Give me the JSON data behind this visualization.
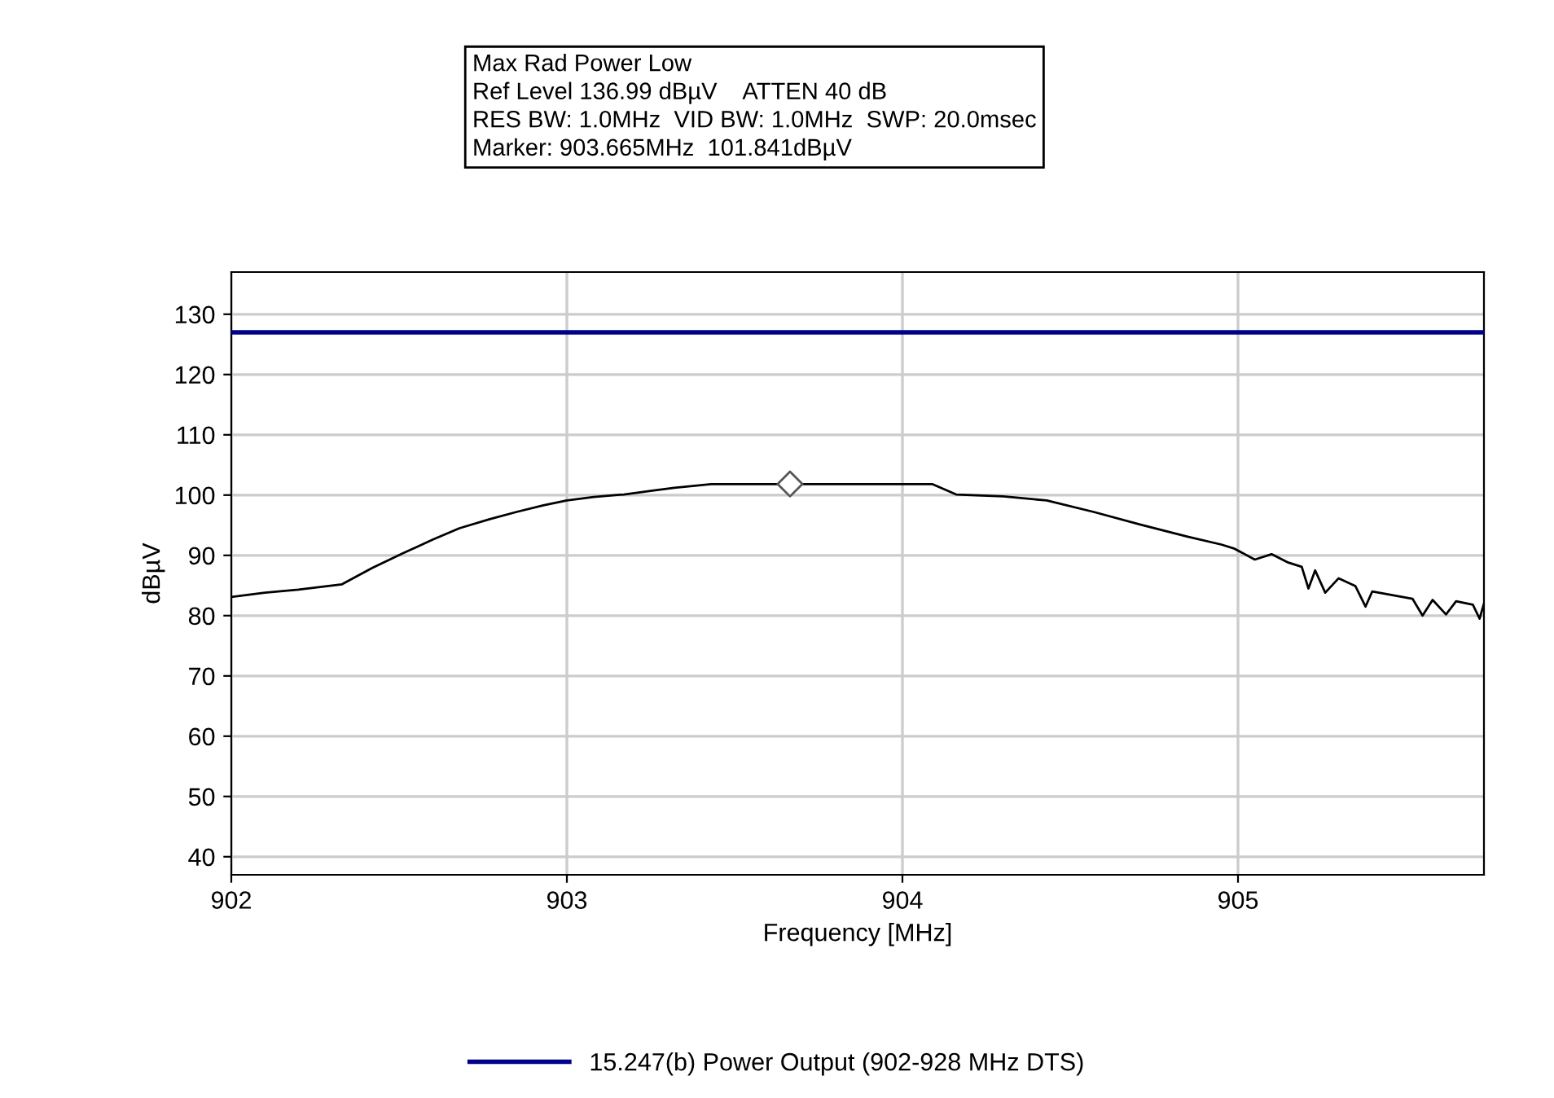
{
  "chart_data": {
    "type": "line",
    "xlabel": "Frequency [MHz]",
    "ylabel": "dBµV",
    "annotations": [
      "Max Rad Power Low",
      "Ref Level 136.99 dBµV    ATTEN 40 dB",
      "RES BW: 1.0MHz  VID BW: 1.0MHz  SWP: 20.0msec",
      "Marker: 903.665MHz  101.841dBµV"
    ],
    "xlim": [
      902,
      905.733
    ],
    "xticks": [
      902,
      903,
      904,
      905
    ],
    "ylim": [
      37,
      137
    ],
    "yticks": [
      40,
      50,
      60,
      70,
      80,
      90,
      100,
      110,
      120,
      130
    ],
    "grid": true,
    "legend": "bottom",
    "series": [
      {
        "name": "15.247(b) Power Output (902-928 MHz DTS)",
        "color": "#00008b",
        "x": [
          902,
          905.733
        ],
        "values": [
          127,
          127
        ]
      },
      {
        "color": "#000000",
        "x": [
          902.0,
          902.1,
          902.2,
          902.33,
          902.42,
          902.51,
          902.6,
          902.68,
          902.77,
          902.85,
          902.93,
          903.0,
          903.08,
          903.17,
          903.25,
          903.32,
          903.43,
          903.6,
          903.8,
          904.0,
          904.09,
          904.16,
          904.3,
          904.43,
          904.57,
          904.71,
          904.85,
          904.95,
          904.99,
          905.05,
          905.1,
          905.15,
          905.19,
          905.21,
          905.23,
          905.26,
          905.3,
          905.35,
          905.38,
          905.4,
          905.45,
          905.52,
          905.55,
          905.58,
          905.62,
          905.65,
          905.7,
          905.72,
          905.733
        ],
        "values": [
          83.1,
          83.8,
          84.3,
          85.2,
          87.9,
          90.3,
          92.6,
          94.5,
          96.0,
          97.2,
          98.3,
          99.1,
          99.7,
          100.1,
          100.7,
          101.2,
          101.8,
          101.8,
          101.8,
          101.8,
          101.8,
          100.1,
          99.8,
          99.1,
          97.2,
          95.1,
          93.1,
          91.8,
          91.1,
          89.3,
          90.2,
          88.8,
          88.1,
          84.5,
          87.5,
          83.8,
          86.2,
          84.9,
          81.5,
          84.0,
          83.5,
          82.8,
          80.0,
          82.6,
          80.2,
          82.4,
          81.8,
          79.5,
          82.0
        ]
      },
      {
        "color": "#555555",
        "type": "scatter",
        "marker": "diamond",
        "x": [
          903.665
        ],
        "values": [
          101.841
        ]
      }
    ]
  }
}
